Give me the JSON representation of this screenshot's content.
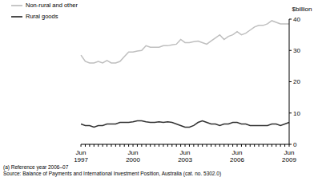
{
  "chart_data": {
    "type": "line",
    "y_label": "$billion",
    "footnote": "(a) Reference year 2006–07",
    "source": "Source: Balance of Payments and International Investment Position, Australia (cat. no. 5302.0)",
    "categories": [
      "Jun 1997",
      null,
      null,
      null,
      null,
      null,
      null,
      null,
      null,
      null,
      null,
      null,
      "Jun 2000",
      null,
      null,
      null,
      null,
      null,
      null,
      null,
      null,
      null,
      null,
      null,
      "Jun 2003",
      null,
      null,
      null,
      null,
      null,
      null,
      null,
      null,
      null,
      null,
      null,
      "Jun 2006",
      null,
      null,
      null,
      null,
      null,
      null,
      null,
      null,
      null,
      null,
      null,
      "Jun 2009"
    ],
    "series": [
      {
        "name": "Rural goods",
        "color": "#333333",
        "values": [
          6.5,
          6,
          6,
          5.5,
          6,
          6,
          6.5,
          6.5,
          6.5,
          7,
          7,
          7,
          7.2,
          7.5,
          7.5,
          7.2,
          7,
          7,
          7.2,
          7,
          7.2,
          7,
          6.5,
          6,
          5.5,
          5.5,
          6,
          7,
          7.5,
          7,
          6.5,
          6.5,
          6,
          6.5,
          6.5,
          7,
          7,
          6.5,
          6.5,
          6,
          6,
          6,
          6,
          6,
          6.5,
          6.5,
          6,
          6.5,
          7
        ]
      },
      {
        "name": "Non-rural and other",
        "color": "#bfbfbf",
        "values": [
          28.5,
          26.5,
          26,
          26,
          26.5,
          26,
          26.8,
          26,
          26,
          26.5,
          28,
          29.5,
          29.5,
          29.8,
          30,
          31.5,
          31,
          31,
          31,
          31.5,
          31.5,
          31.8,
          32,
          33.5,
          32.5,
          32.5,
          32.8,
          33,
          32.5,
          32,
          33,
          34,
          35,
          33.5,
          34.5,
          35,
          36,
          35,
          35.5,
          36.5,
          37.5,
          38,
          38,
          38.5,
          39.5,
          39,
          38.5,
          38.5,
          38.5
        ]
      }
    ],
    "ylim": [
      0,
      40
    ],
    "yticks": [
      0,
      10,
      20,
      30,
      40
    ],
    "grid": false,
    "legend": "top-left"
  }
}
